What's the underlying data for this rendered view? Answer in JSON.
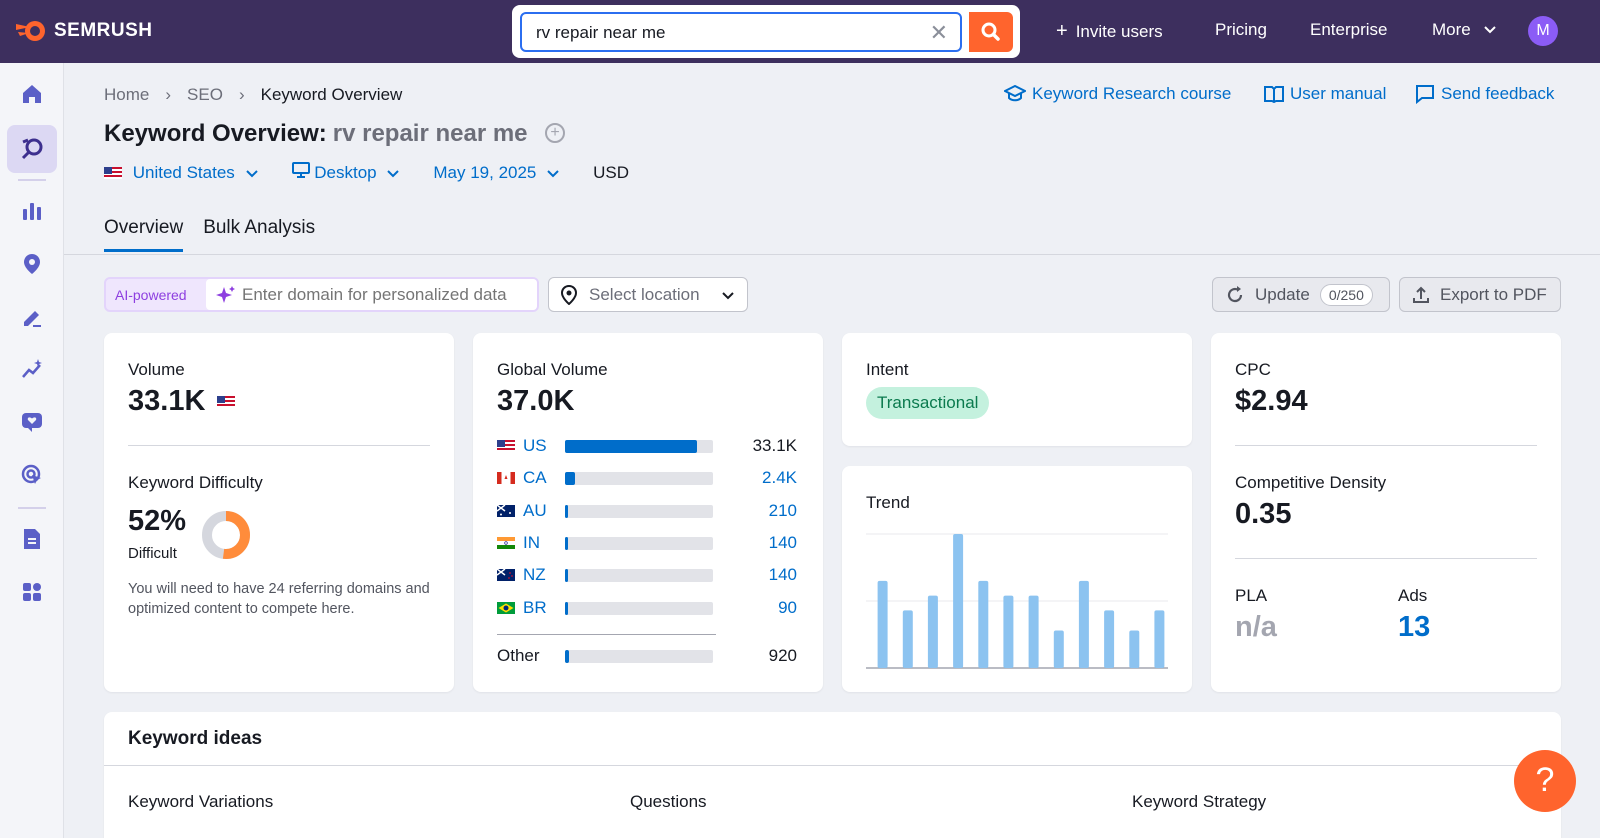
{
  "topbar": {
    "brand": "SEMRUSH",
    "search_value": "rv repair near me",
    "nav": {
      "invite": "Invite users",
      "pricing": "Pricing",
      "enterprise": "Enterprise",
      "more": "More"
    },
    "avatar_initial": "M"
  },
  "breadcrumb": {
    "home": "Home",
    "seo": "SEO",
    "current": "Keyword Overview"
  },
  "links": {
    "course": "Keyword Research course",
    "manual": "User manual",
    "feedback": "Send feedback"
  },
  "title": {
    "prefix": "Keyword Overview:",
    "keyword": "rv repair near me"
  },
  "filters": {
    "country": "United States",
    "device": "Desktop",
    "date": "May 19, 2025",
    "currency": "USD"
  },
  "tabs": {
    "overview": "Overview",
    "bulk": "Bulk Analysis"
  },
  "toolbar": {
    "ai_label": "AI-powered",
    "domain_placeholder": "Enter domain for personalized data",
    "location_placeholder": "Select location",
    "update_label": "Update",
    "update_counter": "0/250",
    "export_label": "Export to PDF"
  },
  "volume": {
    "label": "Volume",
    "value": "33.1K"
  },
  "difficulty": {
    "label": "Keyword Difficulty",
    "value": "52%",
    "level": "Difficult",
    "percent": 52,
    "note": "You will need to have 24 referring domains and optimized content to compete here."
  },
  "global_volume": {
    "label": "Global Volume",
    "value": "37.0K",
    "rows": [
      {
        "code": "US",
        "value": "33.1K",
        "share": 0.89
      },
      {
        "code": "CA",
        "value": "2.4K",
        "share": 0.065
      },
      {
        "code": "AU",
        "value": "210",
        "share": 0.02
      },
      {
        "code": "IN",
        "value": "140",
        "share": 0.02
      },
      {
        "code": "NZ",
        "value": "140",
        "share": 0.02
      },
      {
        "code": "BR",
        "value": "90",
        "share": 0.02
      }
    ],
    "other_label": "Other",
    "other_value": "920",
    "other_share": 0.03
  },
  "intent": {
    "label": "Intent",
    "value": "Transactional"
  },
  "trend": {
    "label": "Trend",
    "values": [
      0.65,
      0.43,
      0.54,
      1.0,
      0.65,
      0.54,
      0.54,
      0.28,
      0.65,
      0.43,
      0.28,
      0.43
    ]
  },
  "cpc": {
    "label": "CPC",
    "value": "$2.94"
  },
  "density": {
    "label": "Competitive Density",
    "value": "0.35"
  },
  "pla": {
    "label": "PLA",
    "value": "n/a"
  },
  "ads": {
    "label": "Ads",
    "value": "13"
  },
  "ideas": {
    "title": "Keyword ideas",
    "variations": "Keyword Variations",
    "questions": "Questions",
    "strategy": "Keyword Strategy"
  },
  "help": "?"
}
